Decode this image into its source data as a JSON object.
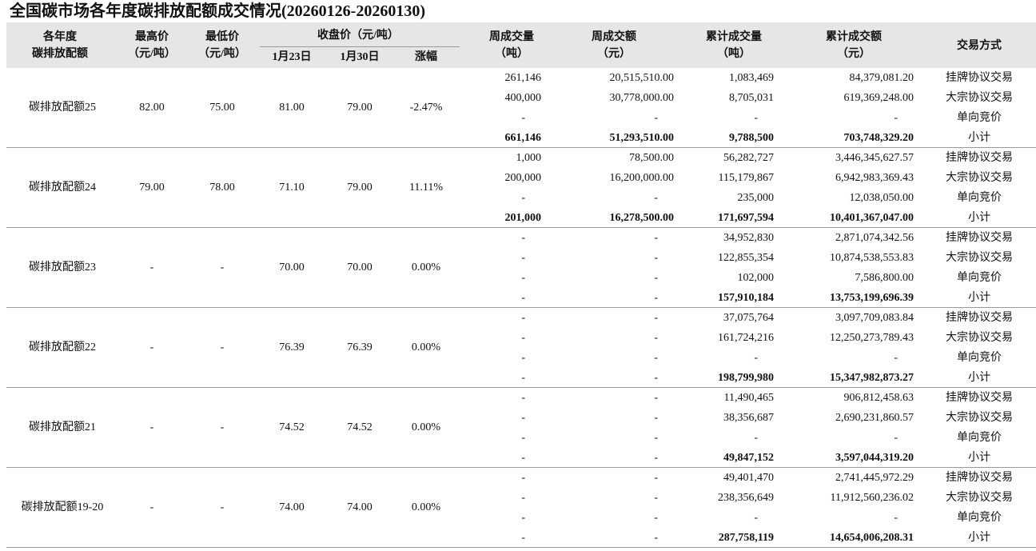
{
  "title": "全国碳市场各年度碳排放配额成交情况(20260126-20260130)",
  "header": {
    "group": [
      "各年度",
      "碳排放配额"
    ],
    "high": [
      "最高价",
      "（元/吨）"
    ],
    "low": [
      "最低价",
      "（元/吨）"
    ],
    "close": "收盘价（元/吨）",
    "close_sub": [
      "1月23日",
      "1月30日",
      "涨幅"
    ],
    "week_vol": [
      "周成交量",
      "（吨）"
    ],
    "week_amt": [
      "周成交额",
      "（元）"
    ],
    "cum_vol": [
      "累计成交量",
      "（吨）"
    ],
    "cum_amt": [
      "累计成交额",
      "（元）"
    ],
    "method": "交易方式"
  },
  "groups": [
    {
      "name": "碳排放配额25",
      "high": "82.00",
      "low": "75.00",
      "close_jan23": "81.00",
      "close_jan30": "79.00",
      "change": "-2.47%",
      "rows": [
        [
          "261,146",
          "20,515,510.00",
          "1,083,469",
          "84,379,081.20",
          "挂牌协议交易"
        ],
        [
          "400,000",
          "30,778,000.00",
          "8,705,031",
          "619,369,248.00",
          "大宗协议交易"
        ],
        [
          "-",
          "-",
          "-",
          "-",
          "单向竞价"
        ],
        [
          "661,146",
          "51,293,510.00",
          "9,788,500",
          "703,748,329.20",
          "小计"
        ]
      ]
    },
    {
      "name": "碳排放配额24",
      "high": "79.00",
      "low": "78.00",
      "close_jan23": "71.10",
      "close_jan30": "79.00",
      "change": "11.11%",
      "rows": [
        [
          "1,000",
          "78,500.00",
          "56,282,727",
          "3,446,345,627.57",
          "挂牌协议交易"
        ],
        [
          "200,000",
          "16,200,000.00",
          "115,179,867",
          "6,942,983,369.43",
          "大宗协议交易"
        ],
        [
          "-",
          "-",
          "235,000",
          "12,038,050.00",
          "单向竞价"
        ],
        [
          "201,000",
          "16,278,500.00",
          "171,697,594",
          "10,401,367,047.00",
          "小计"
        ]
      ]
    },
    {
      "name": "碳排放配额23",
      "high": "-",
      "low": "-",
      "close_jan23": "70.00",
      "close_jan30": "70.00",
      "change": "0.00%",
      "rows": [
        [
          "-",
          "-",
          "34,952,830",
          "2,871,074,342.56",
          "挂牌协议交易"
        ],
        [
          "-",
          "-",
          "122,855,354",
          "10,874,538,553.83",
          "大宗协议交易"
        ],
        [
          "-",
          "-",
          "102,000",
          "7,586,800.00",
          "单向竞价"
        ],
        [
          "-",
          "-",
          "157,910,184",
          "13,753,199,696.39",
          "小计"
        ]
      ]
    },
    {
      "name": "碳排放配额22",
      "high": "-",
      "low": "-",
      "close_jan23": "76.39",
      "close_jan30": "76.39",
      "change": "0.00%",
      "rows": [
        [
          "-",
          "-",
          "37,075,764",
          "3,097,709,083.84",
          "挂牌协议交易"
        ],
        [
          "-",
          "-",
          "161,724,216",
          "12,250,273,789.43",
          "大宗协议交易"
        ],
        [
          "-",
          "-",
          "-",
          "-",
          "单向竞价"
        ],
        [
          "-",
          "-",
          "198,799,980",
          "15,347,982,873.27",
          "小计"
        ]
      ]
    },
    {
      "name": "碳排放配额21",
      "high": "-",
      "low": "-",
      "close_jan23": "74.52",
      "close_jan30": "74.52",
      "change": "0.00%",
      "rows": [
        [
          "-",
          "-",
          "11,490,465",
          "906,812,458.63",
          "挂牌协议交易"
        ],
        [
          "-",
          "-",
          "38,356,687",
          "2,690,231,860.57",
          "大宗协议交易"
        ],
        [
          "-",
          "-",
          "-",
          "-",
          "单向竞价"
        ],
        [
          "-",
          "-",
          "49,847,152",
          "3,597,044,319.20",
          "小计"
        ]
      ]
    },
    {
      "name": "碳排放配额19-20",
      "high": "-",
      "low": "-",
      "close_jan23": "74.00",
      "close_jan30": "74.00",
      "change": "0.00%",
      "rows": [
        [
          "-",
          "-",
          "49,401,470",
          "2,741,445,972.29",
          "挂牌协议交易"
        ],
        [
          "-",
          "-",
          "238,356,649",
          "11,912,560,236.02",
          "大宗协议交易"
        ],
        [
          "-",
          "-",
          "-",
          "-",
          "单向竞价"
        ],
        [
          "-",
          "-",
          "287,758,119",
          "14,654,006,208.31",
          "小计"
        ]
      ]
    }
  ]
}
